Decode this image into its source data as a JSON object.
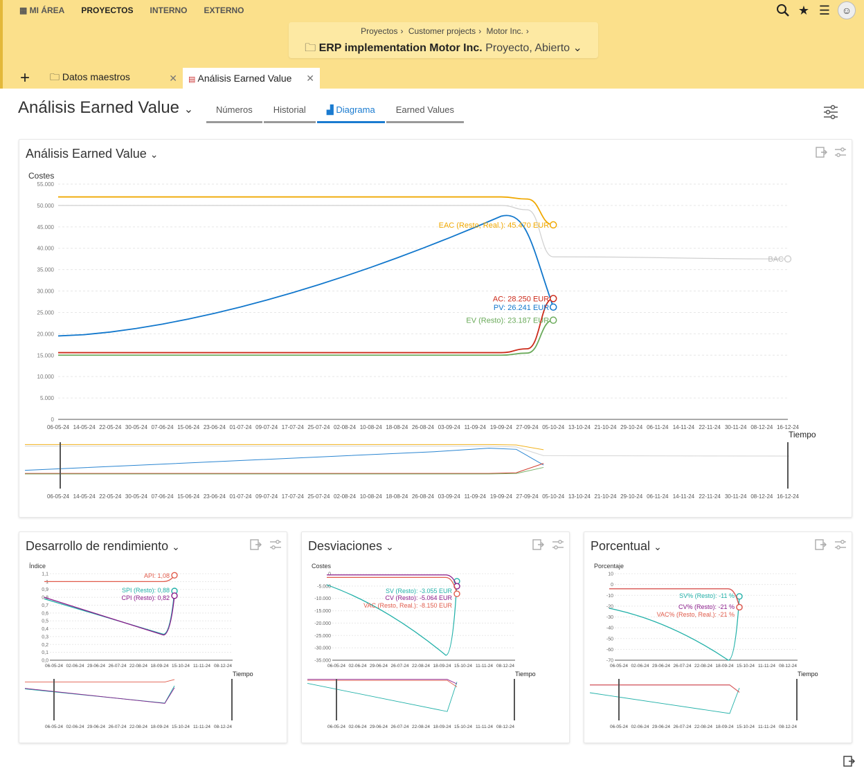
{
  "nav": {
    "my_area": "MI ÁREA",
    "projects": "PROYECTOS",
    "internal": "INTERNO",
    "external": "EXTERNO"
  },
  "breadcrumb": [
    "Proyectos",
    "Customer projects",
    "Motor Inc."
  ],
  "project": {
    "name": "ERP implementation Motor Inc.",
    "status": "Proyecto, Abierto"
  },
  "tabs": [
    {
      "label": "Datos maestros"
    },
    {
      "label": "Análisis Earned Value"
    }
  ],
  "page_title": "Análisis Earned Value",
  "views": [
    "Números",
    "Historial",
    "Diagrama",
    "Earned Values"
  ],
  "active_view": "Diagrama",
  "colors": {
    "eac": "#f0a800",
    "bac": "#cfcfcf",
    "pv": "#1177cc",
    "ac": "#cc2a1a",
    "ev": "#6aaa5a",
    "api": "#e05a4a",
    "spi": "#20b0a8",
    "cpi": "#8a1a8a"
  },
  "main_chart": {
    "title": "Análisis Earned Value",
    "y_label": "Costes",
    "x_label": "Tiempo",
    "y_ticks": [
      "55.000",
      "50.000",
      "45.000",
      "40.000",
      "35.000",
      "30.000",
      "25.000",
      "20.000",
      "15.000",
      "10.000",
      "5.000",
      "0"
    ],
    "x_ticks": [
      "06-05-24",
      "14-05-24",
      "22-05-24",
      "30-05-24",
      "07-06-24",
      "15-06-24",
      "23-06-24",
      "01-07-24",
      "09-07-24",
      "17-07-24",
      "25-07-24",
      "02-08-24",
      "10-08-24",
      "18-08-24",
      "26-08-24",
      "03-09-24",
      "11-09-24",
      "19-09-24",
      "27-09-24",
      "05-10-24",
      "13-10-24",
      "21-10-24",
      "29-10-24",
      "06-11-24",
      "14-11-24",
      "22-11-24",
      "30-11-24",
      "08-12-24",
      "16-12-24"
    ],
    "labels": {
      "eac": "EAC (Resto, Real.): 45.470 EUR",
      "bac": "BAC",
      "ac": "AC: 28.250 EUR",
      "pv": "PV: 26.241 EUR",
      "ev": "EV (Resto): 23.187 EUR"
    }
  },
  "chart_data": [
    {
      "type": "line",
      "title": "Análisis Earned Value",
      "ylabel": "Costes",
      "xlabel": "Tiempo",
      "ylim": [
        0,
        55000
      ],
      "x": [
        "06-05-24",
        "03-09-24",
        "19-09-24",
        "27-09-24",
        "05-10-24",
        "16-12-24"
      ],
      "series": [
        {
          "name": "EAC (Resto, Real.)",
          "values": [
            52000,
            52000,
            52000,
            51500,
            45470,
            null
          ]
        },
        {
          "name": "BAC",
          "values": [
            50000,
            50000,
            50000,
            49000,
            38000,
            37500
          ]
        },
        {
          "name": "PV",
          "values": [
            19500,
            43000,
            47500,
            46000,
            26241,
            null
          ]
        },
        {
          "name": "AC",
          "values": [
            15600,
            15600,
            15600,
            16500,
            28250,
            null
          ]
        },
        {
          "name": "EV (Resto)",
          "values": [
            15000,
            15000,
            15000,
            15500,
            23187,
            null
          ]
        }
      ]
    },
    {
      "type": "line",
      "title": "Desarrollo de rendimiento",
      "ylabel": "Índice",
      "xlabel": "Tiempo",
      "ylim": [
        0,
        1.1
      ],
      "series": [
        {
          "name": "API",
          "values": [
            1.0,
            1.0,
            1.08
          ]
        },
        {
          "name": "SPI (Resto)",
          "values": [
            0.78,
            0.33,
            0.88
          ]
        },
        {
          "name": "CPI (Resto)",
          "values": [
            0.8,
            0.32,
            0.82
          ]
        }
      ]
    },
    {
      "type": "line",
      "title": "Desviaciones",
      "ylabel": "Costes",
      "xlabel": "Tiempo",
      "ylim": [
        -35000,
        0
      ],
      "series": [
        {
          "name": "SV (Resto)",
          "values": [
            -4500,
            -33000,
            -3055
          ]
        },
        {
          "name": "CV (Resto)",
          "values": [
            -500,
            -500,
            -5064
          ]
        },
        {
          "name": "VAC (Resto, Real.)",
          "values": [
            -1500,
            -1500,
            -8150
          ]
        }
      ]
    },
    {
      "type": "line",
      "title": "Porcentual",
      "ylabel": "Porcentaje",
      "xlabel": "Tiempo",
      "ylim": [
        -70,
        10
      ],
      "series": [
        {
          "name": "SV% (Resto)",
          "values": [
            -22,
            -70,
            -11
          ]
        },
        {
          "name": "CV% (Resto)",
          "values": [
            -4,
            -4,
            -21
          ]
        },
        {
          "name": "VAC% (Resto, Real.)",
          "values": [
            -4,
            -4,
            -21
          ]
        }
      ]
    }
  ],
  "small_charts": [
    {
      "title": "Desarrollo de rendimiento",
      "y_label": "Índice",
      "x_label": "Tiempo",
      "y_ticks": [
        "1,1",
        "1",
        "0,9",
        "0,8",
        "0,7",
        "0,6",
        "0,5",
        "0,4",
        "0,3",
        "0,2",
        "0,1",
        "0,0"
      ],
      "labels": [
        "API: 1,08",
        "SPI (Resto): 0,88",
        "CPI (Resto): 0,82"
      ]
    },
    {
      "title": "Desviaciones",
      "y_label": "Costes",
      "x_label": "Tiempo",
      "y_ticks": [
        "0",
        "-5.000",
        "-10.000",
        "-15.000",
        "-20.000",
        "-25.000",
        "-30.000",
        "-35.000"
      ],
      "labels": [
        "SV (Resto): -3.055 EUR",
        "CV (Resto): -5.064 EUR",
        "VAC (Resto, Real.): -8.150 EUR"
      ]
    },
    {
      "title": "Porcentual",
      "y_label": "Porcentaje",
      "x_label": "Tiempo",
      "y_ticks": [
        "10",
        "0",
        "-10",
        "-20",
        "-30",
        "-40",
        "-50",
        "-60",
        "-70"
      ],
      "labels": [
        "SV% (Resto): -11 %",
        "CV% (Resto): -21 %",
        "VAC% (Resto, Real.): -21 %"
      ]
    }
  ],
  "small_x_ticks": [
    "06-05-24",
    "02-06-24",
    "29-06-24",
    "26-07-24",
    "22-08-24",
    "18-09-24",
    "15-10-24",
    "11-11-24",
    "08-12-24"
  ]
}
